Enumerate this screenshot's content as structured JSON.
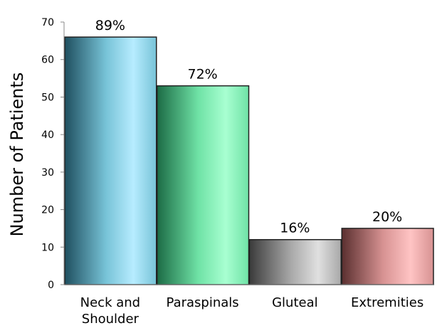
{
  "chart_data": {
    "type": "bar",
    "categories": [
      [
        "Neck and",
        "Shoulder"
      ],
      [
        "Paraspinals"
      ],
      [
        "Gluteal"
      ],
      [
        "Extremities"
      ]
    ],
    "values": [
      66,
      53,
      12,
      15
    ],
    "data_labels": [
      "89%",
      "72%",
      "16%",
      "20%"
    ],
    "ylabel": "Number of Patients",
    "xlabel": "",
    "ylim": [
      0,
      70
    ],
    "yticks": [
      0,
      10,
      20,
      30,
      40,
      50,
      60,
      70
    ],
    "grid": false,
    "legend": "none",
    "colors": [
      {
        "dark": "#1f4f5f",
        "mid": "#77c3d7",
        "light": "#b7ecff"
      },
      {
        "dark": "#1c6b45",
        "mid": "#6fe2a6",
        "light": "#a8ffd1"
      },
      {
        "dark": "#3b3b3b",
        "mid": "#a8a8a8",
        "light": "#e0e0e0"
      },
      {
        "dark": "#5a2f2f",
        "mid": "#d79292",
        "light": "#ffc4c4"
      }
    ]
  }
}
